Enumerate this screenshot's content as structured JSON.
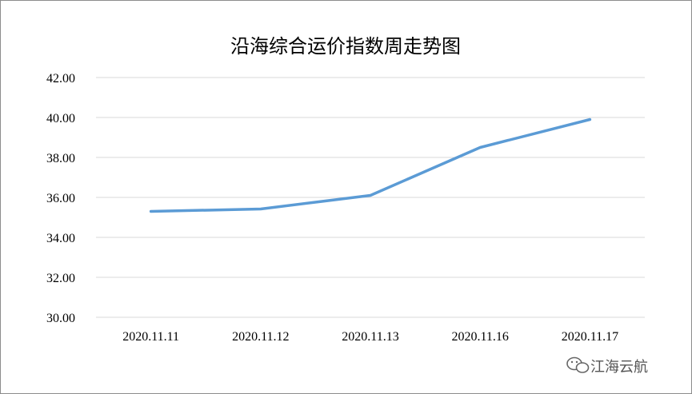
{
  "chart_data": {
    "type": "line",
    "title": "沿海综合运价指数周走势图",
    "categories": [
      "2020.11.11",
      "2020.11.12",
      "2020.11.13",
      "2020.11.16",
      "2020.11.17"
    ],
    "series": [
      {
        "values": [
          35.3,
          35.42,
          36.1,
          38.5,
          39.9
        ]
      }
    ],
    "ylim": [
      30,
      42
    ],
    "yticks": [
      30,
      32,
      34,
      36,
      38,
      40,
      42
    ],
    "ytick_labels": [
      "30.00",
      "32.00",
      "34.00",
      "36.00",
      "38.00",
      "40.00",
      "42.00"
    ],
    "grid": true,
    "series_color": "#5b9bd5"
  },
  "watermark": {
    "text": "江海云航",
    "icon": "wechat-icon"
  }
}
